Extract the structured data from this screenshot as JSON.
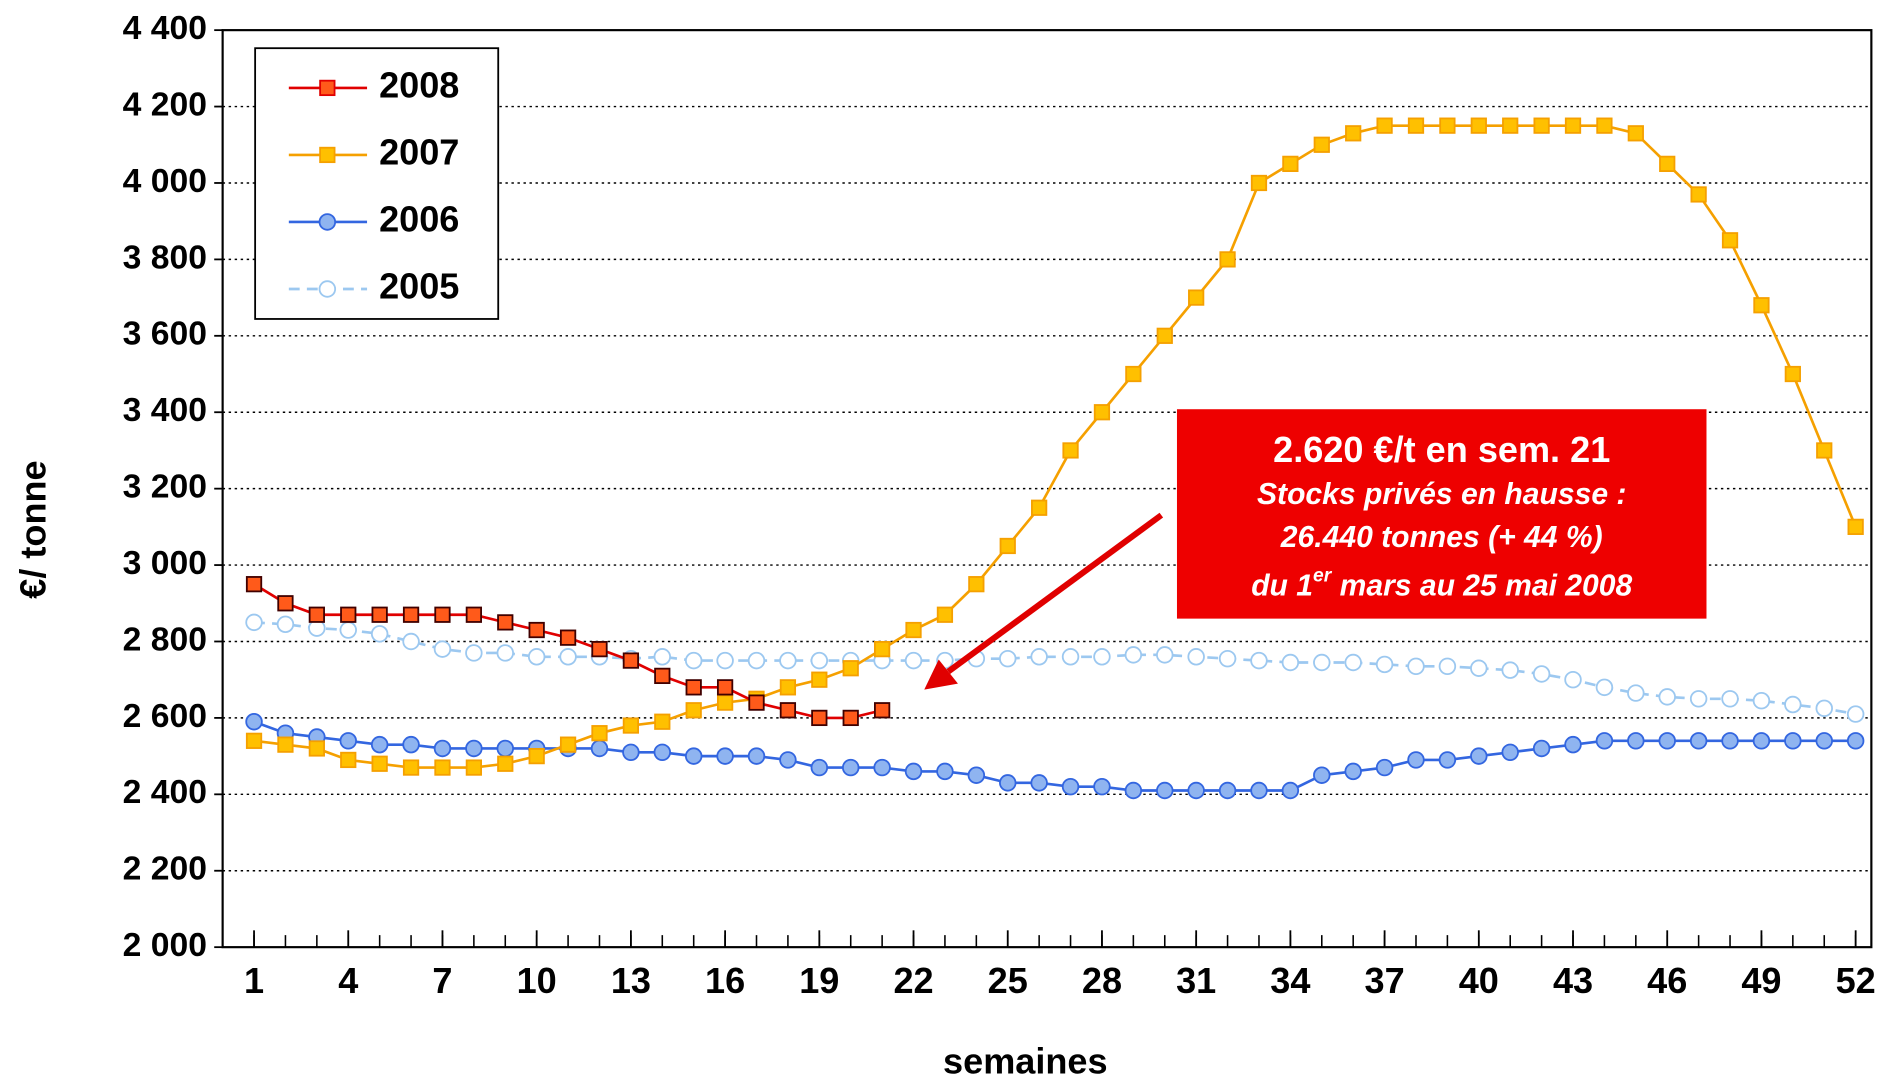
{
  "chart_data": {
    "type": "line",
    "y_label": "€/ tonne",
    "x_label": "semaines",
    "x": [
      1,
      2,
      3,
      4,
      5,
      6,
      7,
      8,
      9,
      10,
      11,
      12,
      13,
      14,
      15,
      16,
      17,
      18,
      19,
      20,
      21,
      22,
      23,
      24,
      25,
      26,
      27,
      28,
      29,
      30,
      31,
      32,
      33,
      34,
      35,
      36,
      37,
      38,
      39,
      40,
      41,
      42,
      43,
      44,
      45,
      46,
      47,
      48,
      49,
      50,
      51,
      52
    ],
    "xlim": [
      0,
      52.5
    ],
    "xticks": [
      1,
      4,
      7,
      10,
      13,
      16,
      19,
      22,
      25,
      28,
      31,
      34,
      37,
      40,
      43,
      46,
      49,
      52
    ],
    "ylim": [
      2000,
      4400
    ],
    "yticks": [
      {
        "value": 2000,
        "label": "2 000"
      },
      {
        "value": 2200,
        "label": "2 200"
      },
      {
        "value": 2400,
        "label": "2 400"
      },
      {
        "value": 2600,
        "label": "2 600"
      },
      {
        "value": 2800,
        "label": "2 800"
      },
      {
        "value": 3000,
        "label": "3 000"
      },
      {
        "value": 3200,
        "label": "3 200"
      },
      {
        "value": 3400,
        "label": "3 400"
      },
      {
        "value": 3600,
        "label": "3 600"
      },
      {
        "value": 3800,
        "label": "3 800"
      },
      {
        "value": 4000,
        "label": "4 000"
      },
      {
        "value": 4200,
        "label": "4 200"
      },
      {
        "value": 4400,
        "label": "4 400"
      }
    ],
    "grid": true,
    "legend": "upper left",
    "series": [
      {
        "name": "2008",
        "color": "#e00000",
        "marker": "square",
        "marker_fill": "#ff5a1a",
        "dashed": false,
        "values": [
          2950,
          2900,
          2870,
          2870,
          2870,
          2870,
          2870,
          2870,
          2850,
          2830,
          2810,
          2780,
          2750,
          2710,
          2680,
          2680,
          2640,
          2620,
          2600,
          2600,
          2620,
          null,
          null,
          null,
          null,
          null,
          null,
          null,
          null,
          null,
          null,
          null,
          null,
          null,
          null,
          null,
          null,
          null,
          null,
          null,
          null,
          null,
          null,
          null,
          null,
          null,
          null,
          null,
          null,
          null,
          null,
          null
        ]
      },
      {
        "name": "2007",
        "color": "#f5a000",
        "marker": "square",
        "marker_fill": "#ffc000",
        "dashed": false,
        "values": [
          2540,
          2530,
          2520,
          2490,
          2480,
          2470,
          2470,
          2470,
          2480,
          2500,
          2530,
          2560,
          2580,
          2590,
          2620,
          2640,
          2650,
          2680,
          2700,
          2730,
          2780,
          2830,
          2870,
          2950,
          3050,
          3150,
          3300,
          3400,
          3500,
          3600,
          3700,
          3800,
          4000,
          4050,
          4100,
          4130,
          4150,
          4150,
          4150,
          4150,
          4150,
          4150,
          4150,
          4150,
          4130,
          4050,
          3970,
          3850,
          3680,
          3500,
          3300,
          3100
        ]
      },
      {
        "name": "2006",
        "color": "#3366e0",
        "marker": "circle",
        "marker_fill": "#8fb4f0",
        "dashed": false,
        "values": [
          2590,
          2560,
          2550,
          2540,
          2530,
          2530,
          2520,
          2520,
          2520,
          2520,
          2520,
          2520,
          2510,
          2510,
          2500,
          2500,
          2500,
          2490,
          2470,
          2470,
          2470,
          2460,
          2460,
          2450,
          2430,
          2430,
          2420,
          2420,
          2410,
          2410,
          2410,
          2410,
          2410,
          2410,
          2450,
          2460,
          2470,
          2490,
          2490,
          2500,
          2510,
          2520,
          2530,
          2540,
          2540,
          2540,
          2540,
          2540,
          2540,
          2540,
          2540,
          2540
        ]
      },
      {
        "name": "2005",
        "color": "#9cc8f0",
        "marker": "circle",
        "marker_fill": "#ffffff",
        "dashed": true,
        "values": [
          2850,
          2845,
          2835,
          2830,
          2820,
          2800,
          2780,
          2770,
          2770,
          2760,
          2760,
          2760,
          2755,
          2760,
          2750,
          2750,
          2750,
          2750,
          2750,
          2750,
          2750,
          2750,
          2750,
          2755,
          2755,
          2760,
          2760,
          2760,
          2765,
          2765,
          2760,
          2755,
          2750,
          2745,
          2745,
          2745,
          2740,
          2735,
          2735,
          2730,
          2725,
          2715,
          2700,
          2680,
          2665,
          2655,
          2650,
          2650,
          2645,
          2635,
          2625,
          2610
        ]
      }
    ],
    "annotation": {
      "lines": [
        "2.620 €/t en sem. 21",
        "Stocks privés en hausse :",
        "26.440 tonnes (+ 44 %)"
      ],
      "last_line": [
        "du 1",
        "er",
        " mars au 25 mai 2008"
      ]
    }
  }
}
